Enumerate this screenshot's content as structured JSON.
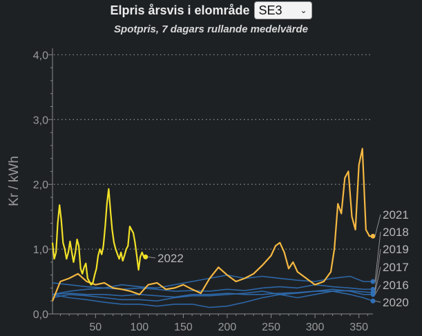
{
  "header": {
    "title": "Elpris årsvis i elområde",
    "select_value": "SE3",
    "subtitle": "Spotpris, 7 dagars rullande medelvärde"
  },
  "colors": {
    "background": "#1e2124",
    "y2021": "#f5b942",
    "y2022": "#f2e227",
    "older": "#2f6fb6",
    "axis": "#8a8a8a",
    "grid": "#8a8a8a"
  },
  "chart_data": {
    "type": "line",
    "title": "Elpris årsvis i elområde",
    "subtitle": "Spotpris, 7 dagars rullande medelvärde",
    "xlabel": "",
    "ylabel": "Kr / kWh",
    "xlim": [
      1,
      366
    ],
    "ylim": [
      0,
      4.1
    ],
    "x_ticks": [
      50,
      100,
      150,
      200,
      250,
      300,
      350
    ],
    "x_tick_labels": [
      "50",
      "100",
      "150",
      "200",
      "250",
      "300",
      "350"
    ],
    "y_ticks": [
      0,
      1,
      2,
      3,
      4
    ],
    "y_tick_labels": [
      "0,0",
      "1,0",
      "2,0",
      "3,0",
      "4,0"
    ],
    "grid": "horizontal dotted",
    "legend": "labels at line ends",
    "series": [
      {
        "name": "2022",
        "color": "#f2e227",
        "x": [
          1,
          3,
          5,
          7,
          9,
          11,
          13,
          15,
          17,
          19,
          21,
          23,
          25,
          27,
          29,
          31,
          33,
          35,
          37,
          39,
          41,
          43,
          45,
          47,
          49,
          51,
          53,
          55,
          57,
          59,
          61,
          63,
          65,
          67,
          69,
          71,
          73,
          75,
          77,
          79,
          81,
          83,
          85,
          87,
          89,
          91,
          93,
          95,
          97,
          99,
          101,
          103,
          105,
          107
        ],
        "values": [
          1.1,
          0.85,
          0.95,
          1.4,
          1.68,
          1.45,
          1.1,
          1.0,
          0.85,
          0.95,
          1.12,
          0.95,
          0.8,
          0.95,
          1.15,
          1.05,
          0.7,
          0.62,
          0.72,
          0.78,
          0.55,
          0.5,
          0.45,
          0.48,
          0.6,
          0.7,
          0.9,
          1.0,
          0.92,
          1.05,
          1.35,
          1.7,
          1.93,
          1.6,
          1.3,
          1.1,
          1.0,
          0.92,
          0.85,
          0.95,
          0.82,
          0.9,
          1.0,
          1.05,
          1.35,
          1.3,
          1.25,
          1.1,
          0.9,
          0.68,
          0.88,
          0.95,
          0.88,
          0.88
        ]
      },
      {
        "name": "2021",
        "color": "#f5b942",
        "x": [
          1,
          10,
          20,
          30,
          40,
          50,
          60,
          70,
          80,
          90,
          100,
          110,
          120,
          130,
          140,
          150,
          160,
          170,
          180,
          190,
          200,
          210,
          220,
          230,
          240,
          250,
          255,
          260,
          265,
          270,
          275,
          280,
          290,
          300,
          310,
          318,
          322,
          326,
          330,
          334,
          338,
          342,
          346,
          350,
          354,
          358,
          362,
          366
        ],
        "values": [
          0.2,
          0.5,
          0.55,
          0.62,
          0.5,
          0.45,
          0.48,
          0.4,
          0.38,
          0.35,
          0.3,
          0.45,
          0.48,
          0.38,
          0.4,
          0.45,
          0.38,
          0.32,
          0.55,
          0.72,
          0.6,
          0.5,
          0.55,
          0.62,
          0.75,
          0.9,
          1.05,
          1.1,
          0.95,
          0.7,
          0.8,
          0.65,
          0.55,
          0.45,
          0.5,
          0.65,
          1.0,
          1.7,
          1.55,
          2.1,
          2.2,
          1.5,
          1.3,
          2.3,
          2.55,
          1.3,
          1.2,
          1.2
        ]
      },
      {
        "name": "2020",
        "color": "#2f6fb6",
        "x": [
          1,
          20,
          40,
          60,
          80,
          100,
          120,
          140,
          160,
          180,
          200,
          220,
          240,
          260,
          280,
          300,
          320,
          340,
          355,
          366
        ],
        "values": [
          0.3,
          0.25,
          0.22,
          0.18,
          0.15,
          0.15,
          0.12,
          0.15,
          0.15,
          0.1,
          0.12,
          0.18,
          0.25,
          0.3,
          0.25,
          0.3,
          0.35,
          0.3,
          0.25,
          0.2
        ]
      },
      {
        "name": "2016",
        "color": "#2f6fb6",
        "x": [
          1,
          20,
          40,
          60,
          80,
          100,
          120,
          140,
          160,
          180,
          200,
          220,
          240,
          260,
          280,
          300,
          320,
          340,
          355,
          366
        ],
        "values": [
          0.25,
          0.3,
          0.28,
          0.25,
          0.22,
          0.22,
          0.2,
          0.25,
          0.28,
          0.28,
          0.3,
          0.32,
          0.35,
          0.3,
          0.32,
          0.35,
          0.38,
          0.35,
          0.3,
          0.3
        ]
      },
      {
        "name": "2017",
        "color": "#2f6fb6",
        "x": [
          1,
          20,
          40,
          60,
          80,
          100,
          120,
          140,
          160,
          180,
          200,
          220,
          240,
          260,
          280,
          300,
          320,
          340,
          355,
          366
        ],
        "values": [
          0.3,
          0.32,
          0.3,
          0.3,
          0.28,
          0.3,
          0.28,
          0.26,
          0.3,
          0.3,
          0.32,
          0.3,
          0.3,
          0.32,
          0.33,
          0.35,
          0.35,
          0.36,
          0.34,
          0.33
        ]
      },
      {
        "name": "2019",
        "color": "#2f6fb6",
        "x": [
          1,
          20,
          40,
          60,
          80,
          100,
          120,
          140,
          160,
          180,
          200,
          220,
          240,
          260,
          280,
          300,
          320,
          340,
          355,
          366
        ],
        "values": [
          0.48,
          0.45,
          0.42,
          0.4,
          0.38,
          0.4,
          0.38,
          0.35,
          0.36,
          0.35,
          0.38,
          0.36,
          0.4,
          0.42,
          0.4,
          0.45,
          0.42,
          0.4,
          0.38,
          0.38
        ]
      },
      {
        "name": "2018",
        "color": "#2f6fb6",
        "x": [
          1,
          20,
          40,
          60,
          80,
          100,
          120,
          140,
          160,
          180,
          200,
          220,
          240,
          260,
          280,
          300,
          320,
          340,
          355,
          366
        ],
        "values": [
          0.3,
          0.35,
          0.38,
          0.4,
          0.45,
          0.42,
          0.4,
          0.45,
          0.5,
          0.55,
          0.6,
          0.55,
          0.58,
          0.55,
          0.52,
          0.5,
          0.55,
          0.58,
          0.5,
          0.5
        ]
      }
    ]
  }
}
